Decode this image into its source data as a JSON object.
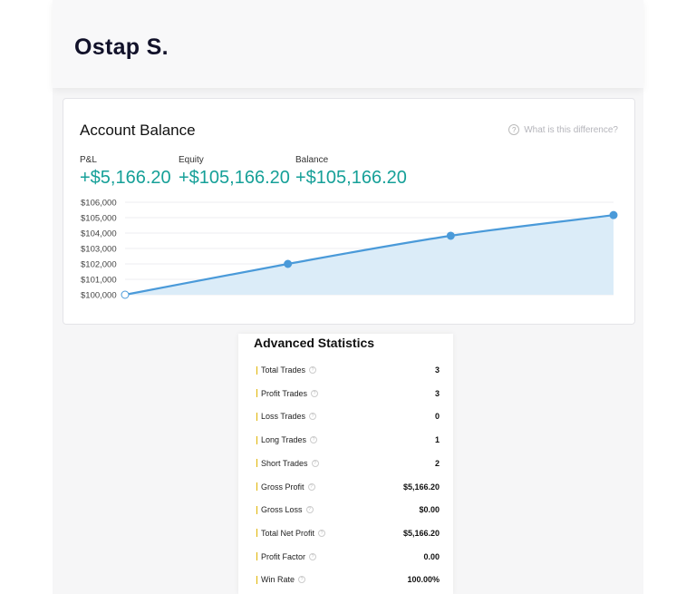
{
  "header": {
    "user_name": "Ostap S."
  },
  "account": {
    "title": "Account Balance",
    "help_link": "What is this difference?",
    "metrics": [
      {
        "label": "P&L",
        "value": "+$5,166.20"
      },
      {
        "label": "Equity",
        "value": "+$105,166.20"
      },
      {
        "label": "Balance",
        "value": "+$105,166.20"
      }
    ]
  },
  "chart_data": {
    "type": "area",
    "title": "",
    "y_ticks": [
      "$100,000",
      "$101,000",
      "$102,000",
      "$103,000",
      "$104,000",
      "$105,000",
      "$106,000"
    ],
    "ylim": [
      100000,
      106000
    ],
    "x": [
      0,
      1,
      2,
      3
    ],
    "values": [
      100000,
      102000,
      103824,
      105166.2
    ],
    "grid": true,
    "colors": {
      "line": "#4a9ad9",
      "fill": "#dbecf8"
    }
  },
  "stats": {
    "title": "Advanced Statistics",
    "rows": [
      {
        "label": "Total Trades",
        "value": "3"
      },
      {
        "label": "Profit Trades",
        "value": "3"
      },
      {
        "label": "Loss Trades",
        "value": "0"
      },
      {
        "label": "Long Trades",
        "value": "1"
      },
      {
        "label": "Short Trades",
        "value": "2"
      },
      {
        "label": "Gross Profit",
        "value": "$5,166.20"
      },
      {
        "label": "Gross Loss",
        "value": "$0.00"
      },
      {
        "label": "Total Net Profit",
        "value": "$5,166.20"
      },
      {
        "label": "Profit Factor",
        "value": "0.00"
      },
      {
        "label": "Win Rate",
        "value": "100.00%"
      }
    ]
  }
}
